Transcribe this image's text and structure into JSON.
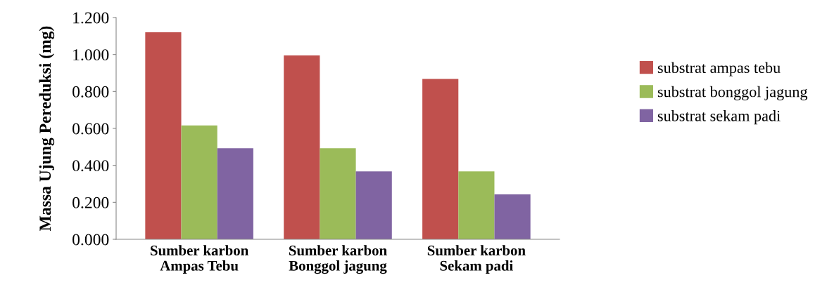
{
  "chart_data": {
    "type": "bar",
    "ylabel": "Massa Ujung Pereduksi (mg)",
    "categories": [
      "Sumber karbon\nAmpas Tebu",
      "Sumber karbon\nBonggol jagung",
      "Sumber karbon\nSekam padi"
    ],
    "series": [
      {
        "name": "substrat ampas tebu",
        "color": "#c0504d",
        "values": [
          1.12,
          0.995,
          0.868
        ]
      },
      {
        "name": "substrat bonggol jagung",
        "color": "#9bbb59",
        "values": [
          0.616,
          0.493,
          0.367
        ]
      },
      {
        "name": "substrat sekam padi",
        "color": "#8064a2",
        "values": [
          0.493,
          0.367,
          0.243
        ]
      }
    ],
    "ylim": [
      0,
      1.2
    ],
    "yticks": [
      {
        "value": 0,
        "label": "0.000"
      },
      {
        "value": 0.2,
        "label": "0.200"
      },
      {
        "value": 0.4,
        "label": "0.400"
      },
      {
        "value": 0.6,
        "label": "0.600"
      },
      {
        "value": 0.8,
        "label": "0.800"
      },
      {
        "value": 1.0,
        "label": "1.000"
      },
      {
        "value": 1.2,
        "label": "1.200"
      }
    ],
    "grid": false,
    "legend": "right"
  }
}
